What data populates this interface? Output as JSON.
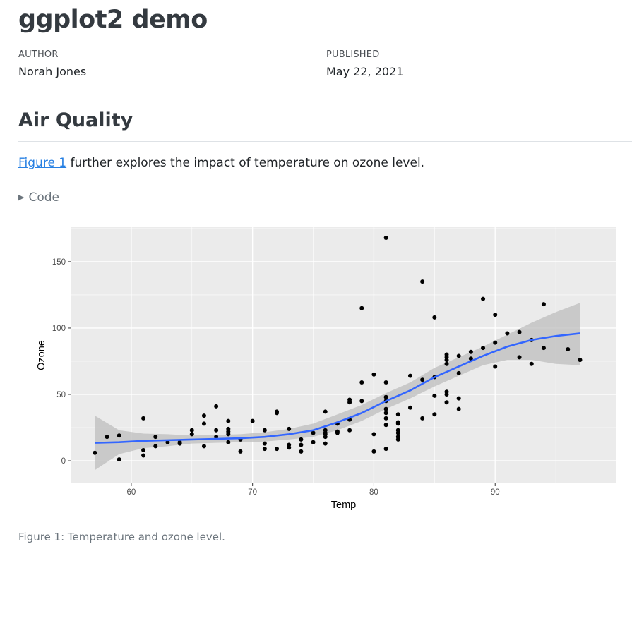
{
  "document": {
    "title": "ggplot2 demo",
    "author_label": "AUTHOR",
    "author": "Norah Jones",
    "published_label": "PUBLISHED",
    "published": "May 22, 2021"
  },
  "section": {
    "heading": "Air Quality",
    "figure_link": "Figure 1",
    "paragraph_rest": " further explores the impact of temperature on ozone level.",
    "code_toggle": "Code",
    "caption": "Figure 1: Temperature and ozone level."
  },
  "chart_data": {
    "type": "scatter",
    "xlabel": "Temp",
    "ylabel": "Ozone",
    "xlim": [
      55,
      100
    ],
    "ylim": [
      -17,
      176
    ],
    "x_ticks": [
      60,
      70,
      80,
      90
    ],
    "y_ticks": [
      0,
      50,
      100,
      150
    ],
    "grid": true,
    "colors": {
      "panel": "#ebebeb",
      "grid": "#ffffff",
      "points": "#000000",
      "smooth": "#3366ff",
      "ribbon": "#bdbdbd"
    },
    "points": [
      [
        57,
        6
      ],
      [
        58,
        18
      ],
      [
        59,
        19
      ],
      [
        59,
        1
      ],
      [
        61,
        32
      ],
      [
        61,
        8
      ],
      [
        61,
        4
      ],
      [
        62,
        18
      ],
      [
        62,
        11
      ],
      [
        63,
        14
      ],
      [
        64,
        14
      ],
      [
        64,
        13
      ],
      [
        65,
        23
      ],
      [
        65,
        20
      ],
      [
        66,
        34
      ],
      [
        66,
        28
      ],
      [
        66,
        11
      ],
      [
        67,
        41
      ],
      [
        67,
        23
      ],
      [
        67,
        18
      ],
      [
        68,
        30
      ],
      [
        68,
        24
      ],
      [
        68,
        22
      ],
      [
        68,
        20
      ],
      [
        68,
        14
      ],
      [
        69,
        16
      ],
      [
        69,
        7
      ],
      [
        70,
        30
      ],
      [
        71,
        23
      ],
      [
        71,
        13
      ],
      [
        71,
        9
      ],
      [
        72,
        37
      ],
      [
        72,
        36
      ],
      [
        72,
        9
      ],
      [
        73,
        24
      ],
      [
        73,
        12
      ],
      [
        73,
        10
      ],
      [
        74,
        16
      ],
      [
        74,
        12
      ],
      [
        74,
        7
      ],
      [
        75,
        21
      ],
      [
        75,
        14
      ],
      [
        76,
        37
      ],
      [
        76,
        23
      ],
      [
        76,
        21
      ],
      [
        76,
        20
      ],
      [
        76,
        18
      ],
      [
        76,
        13
      ],
      [
        77,
        28
      ],
      [
        77,
        22
      ],
      [
        77,
        21
      ],
      [
        78,
        46
      ],
      [
        78,
        44
      ],
      [
        78,
        31
      ],
      [
        78,
        23
      ],
      [
        79,
        115
      ],
      [
        79,
        59
      ],
      [
        79,
        45
      ],
      [
        80,
        65
      ],
      [
        80,
        20
      ],
      [
        80,
        7
      ],
      [
        81,
        168
      ],
      [
        81,
        59
      ],
      [
        81,
        48
      ],
      [
        81,
        45
      ],
      [
        81,
        39
      ],
      [
        81,
        36
      ],
      [
        81,
        32
      ],
      [
        81,
        27
      ],
      [
        81,
        9
      ],
      [
        82,
        35
      ],
      [
        82,
        29
      ],
      [
        82,
        28
      ],
      [
        82,
        23
      ],
      [
        82,
        21
      ],
      [
        82,
        18
      ],
      [
        82,
        16
      ],
      [
        83,
        64
      ],
      [
        83,
        40
      ],
      [
        84,
        135
      ],
      [
        84,
        61
      ],
      [
        84,
        32
      ],
      [
        85,
        108
      ],
      [
        85,
        63
      ],
      [
        85,
        49
      ],
      [
        85,
        35
      ],
      [
        86,
        80
      ],
      [
        86,
        78
      ],
      [
        86,
        76
      ],
      [
        86,
        73
      ],
      [
        86,
        52
      ],
      [
        86,
        50
      ],
      [
        86,
        44
      ],
      [
        87,
        79
      ],
      [
        87,
        66
      ],
      [
        87,
        47
      ],
      [
        87,
        39
      ],
      [
        88,
        82
      ],
      [
        88,
        77
      ],
      [
        89,
        122
      ],
      [
        89,
        85
      ],
      [
        90,
        110
      ],
      [
        90,
        89
      ],
      [
        90,
        71
      ],
      [
        91,
        96
      ],
      [
        92,
        97
      ],
      [
        92,
        78
      ],
      [
        93,
        91
      ],
      [
        93,
        73
      ],
      [
        94,
        118
      ],
      [
        94,
        85
      ],
      [
        96,
        84
      ],
      [
        97,
        76
      ]
    ],
    "smooth": {
      "x": [
        57,
        59,
        61,
        63,
        65,
        67,
        69,
        71,
        73,
        75,
        77,
        79,
        81,
        83,
        85,
        87,
        89,
        91,
        93,
        95,
        97
      ],
      "y": [
        13.5,
        14,
        15,
        15.5,
        16,
        16.5,
        17,
        18,
        20,
        23,
        29,
        36,
        45,
        53,
        63,
        71,
        79,
        86,
        91,
        94,
        96
      ],
      "lower": [
        -7,
        5,
        9.5,
        11,
        13,
        13.5,
        14,
        14.5,
        16,
        18,
        23,
        30,
        39,
        47,
        56,
        64,
        72,
        76,
        76,
        73,
        72
      ],
      "upper": [
        34,
        23,
        20.5,
        20,
        19,
        19.5,
        20,
        21.5,
        24,
        28,
        35,
        42,
        51,
        59,
        70,
        78,
        86,
        95,
        104,
        112,
        119
      ]
    }
  }
}
